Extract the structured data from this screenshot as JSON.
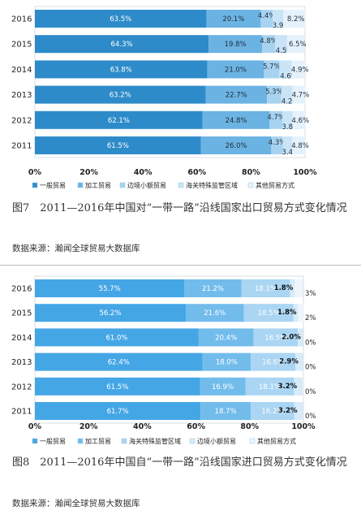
{
  "chart_data": [
    {
      "type": "bar",
      "orientation": "horizontal-stacked-100",
      "categories": [
        "2016",
        "2015",
        "2014",
        "2013",
        "2012",
        "2011"
      ],
      "series": [
        {
          "name": "一般贸易",
          "color": "#2e8bc9",
          "values": [
            63.5,
            64.3,
            63.8,
            63.2,
            62.1,
            61.5
          ]
        },
        {
          "name": "加工贸易",
          "color": "#6bb3e3",
          "values": [
            20.1,
            19.8,
            21.0,
            22.7,
            24.8,
            26.0
          ]
        },
        {
          "name": "边境小额贸易",
          "color": "#a8d3f0",
          "values": [
            4.4,
            4.8,
            5.7,
            5.3,
            4.7,
            4.3
          ]
        },
        {
          "name": "海关特殊监管区域",
          "color": "#c9e4f6",
          "values": [
            3.9,
            4.5,
            4.6,
            4.2,
            3.8,
            3.4
          ]
        },
        {
          "name": "其他贸易方式",
          "color": "#e6f2fb",
          "values": [
            8.2,
            6.5,
            4.9,
            4.7,
            4.6,
            4.8
          ]
        }
      ],
      "labels": [
        [
          "63.5%",
          "20.1%",
          "4.4%",
          "3.9%",
          "8.2%"
        ],
        [
          "64.3%",
          "19.8%",
          "4.8%",
          "4.5%",
          "6.5%"
        ],
        [
          "63.8%",
          "21.0%",
          "5.7%",
          "4.6%",
          "4.9%"
        ],
        [
          "63.2%",
          "22.7%",
          "5.3%",
          "4.2%",
          "4.7%"
        ],
        [
          "62.1%",
          "24.8%",
          "4.7%",
          "3.8%",
          "4.6%"
        ],
        [
          "61.5%",
          "26.0%",
          "4.3%",
          "3.4%",
          "4.8%"
        ]
      ],
      "xticks": [
        "0%",
        "20%",
        "40%",
        "60%",
        "80%",
        "100%"
      ],
      "xlim": [
        0,
        100
      ],
      "caption": "图7　2011—2016年中国对“一带一路”沿线国家出口贸易方式变化情况",
      "source": "数据来源：瀚闻全球贸易大数据库"
    },
    {
      "type": "bar",
      "orientation": "horizontal-stacked-100",
      "categories": [
        "2016",
        "2015",
        "2014",
        "2013",
        "2012",
        "2011"
      ],
      "series": [
        {
          "name": "一般贸易",
          "color": "#45a6e6",
          "values": [
            55.7,
            56.2,
            61.0,
            62.4,
            61.5,
            61.7
          ]
        },
        {
          "name": "加工贸易",
          "color": "#72bcec",
          "values": [
            21.2,
            21.6,
            20.4,
            18.0,
            16.9,
            18.7
          ]
        },
        {
          "name": "海关特殊监管区域",
          "color": "#aad5f3",
          "values": [
            18.1,
            18.5,
            16.5,
            16.6,
            18.1,
            16.2
          ]
        },
        {
          "name": "边境小额贸易",
          "color": "#d7ebf8",
          "values": [
            1.8,
            1.8,
            2.0,
            2.9,
            3.2,
            3.2
          ]
        },
        {
          "name": "其他贸易方式",
          "color": "#eef6fc",
          "values": [
            3,
            2,
            0,
            0,
            0,
            0
          ]
        }
      ],
      "labels": [
        [
          "55.7%",
          "21.2%",
          "18.1%",
          "1.8%",
          "3%"
        ],
        [
          "56.2%",
          "21.6%",
          "18.5%",
          "1.8%",
          "2%"
        ],
        [
          "61.0%",
          "20.4%",
          "16.5%",
          "2.0%",
          "0%"
        ],
        [
          "62.4%",
          "18.0%",
          "16.6%",
          "2.9%",
          "0%"
        ],
        [
          "61.5%",
          "16.9%",
          "18.1%",
          "3.2%",
          "0%"
        ],
        [
          "61.7%",
          "18.7%",
          "16.2%",
          "3.2%",
          "0%"
        ]
      ],
      "xticks": [
        "0%",
        "20%",
        "40%",
        "60%",
        "80%",
        "100%"
      ],
      "xlim": [
        0,
        100
      ],
      "caption": "图8　2011—2016年中国自“一带一路”沿线国家进口贸易方式变化情况",
      "source": "数据来源：瀚闻全球贸易大数据库"
    }
  ]
}
